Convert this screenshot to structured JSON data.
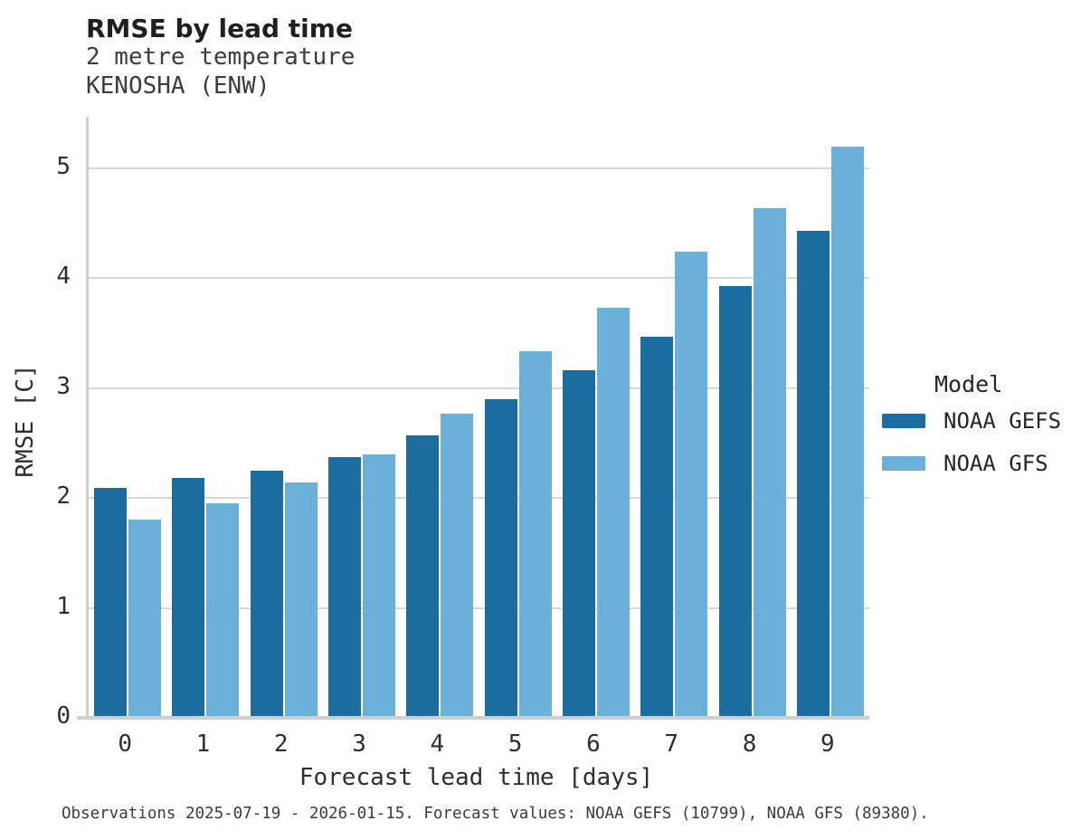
{
  "header": {
    "title": "RMSE by lead time",
    "subtitle_line1": "2 metre temperature",
    "subtitle_line2": "KENOSHA (ENW)"
  },
  "chart_data": {
    "type": "bar",
    "title": "RMSE by lead time",
    "subtitle": [
      "2 metre temperature",
      "KENOSHA (ENW)"
    ],
    "categories": [
      "0",
      "1",
      "2",
      "3",
      "4",
      "5",
      "6",
      "7",
      "8",
      "9"
    ],
    "series": [
      {
        "name": "NOAA GEFS",
        "color": "#1a6d9e",
        "values": [
          2.09,
          2.18,
          2.25,
          2.37,
          2.57,
          2.9,
          3.16,
          3.47,
          3.93,
          4.43
        ]
      },
      {
        "name": "NOAA GFS",
        "color": "#6bb0d8",
        "values": [
          1.8,
          1.95,
          2.14,
          2.4,
          2.77,
          3.34,
          3.73,
          4.24,
          4.64,
          5.2
        ]
      }
    ],
    "xlabel": "Forecast lead time [days]",
    "ylabel": "RMSE [C]",
    "yticks": [
      0,
      1,
      2,
      3,
      4,
      5
    ],
    "ylim": [
      0,
      5.47
    ],
    "grid": true,
    "legend_title": "Model",
    "legend_position": "right"
  },
  "legend": {
    "title": "Model",
    "entries": [
      {
        "label": "NOAA GEFS",
        "color": "#1a6d9e"
      },
      {
        "label": "NOAA GFS",
        "color": "#6bb0d8"
      }
    ]
  },
  "footer": {
    "note": "Observations 2025-07-19 - 2026-01-15. Forecast values: NOAA GEFS (10799), NOAA GFS (89380)."
  },
  "colors": {
    "series_dark": "#1a6d9e",
    "series_light": "#6bb0d8",
    "gridline": "#d8d8d8",
    "axis_spine": "#cfcfcf",
    "text_primary": "#1f1f1f",
    "text_secondary": "#3c3c3c"
  }
}
